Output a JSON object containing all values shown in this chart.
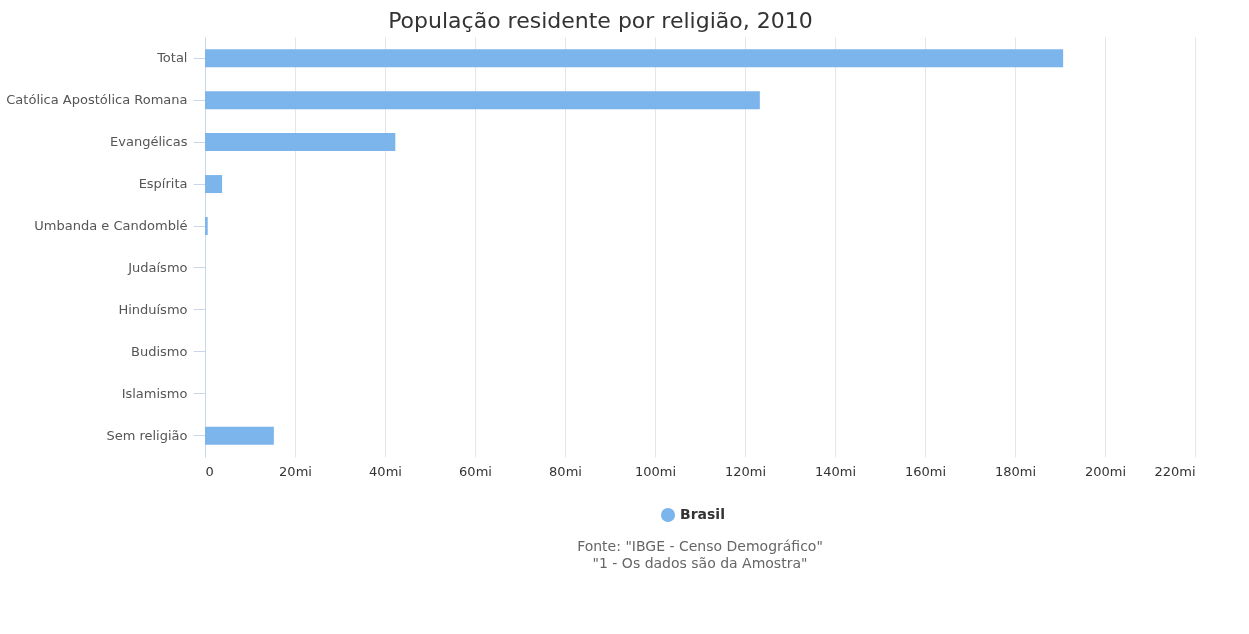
{
  "chart_data": {
    "type": "bar",
    "orientation": "horizontal",
    "title": "População residente por religião, 2010",
    "categories": [
      "Total",
      "Católica Apostólica Romana",
      "Evangélicas",
      "Espírita",
      "Umbanda e Candomblé",
      "Judaísmo",
      "Hinduísmo",
      "Budismo",
      "Islamismo",
      "Sem religião"
    ],
    "series": [
      {
        "name": "Brasil",
        "color": "#7cb5ec",
        "values": [
          190.7,
          123.3,
          42.3,
          3.8,
          0.6,
          null,
          null,
          null,
          null,
          15.3
        ]
      }
    ],
    "xlim": [
      0,
      220
    ],
    "xticks": [
      0,
      {
        "value": 20,
        "label": "20mi"
      },
      {
        "value": 40,
        "label": "40mi"
      },
      {
        "value": 60,
        "label": "60mi"
      },
      {
        "value": 80,
        "label": "80mi"
      },
      {
        "value": 100,
        "label": "100mi"
      },
      {
        "value": 120,
        "label": "120mi"
      },
      {
        "value": 140,
        "label": "140mi"
      },
      {
        "value": 160,
        "label": "160mi"
      },
      {
        "value": 180,
        "label": "180mi"
      },
      {
        "value": 200,
        "label": "200mi"
      },
      {
        "value": 220,
        "label": "220mi"
      }
    ],
    "grid": "x",
    "legend": "bottom",
    "annotations": [
      "Fonte: \"IBGE - Censo Demográfico\"",
      "\"1 - Os dados são da Amostra\""
    ]
  }
}
